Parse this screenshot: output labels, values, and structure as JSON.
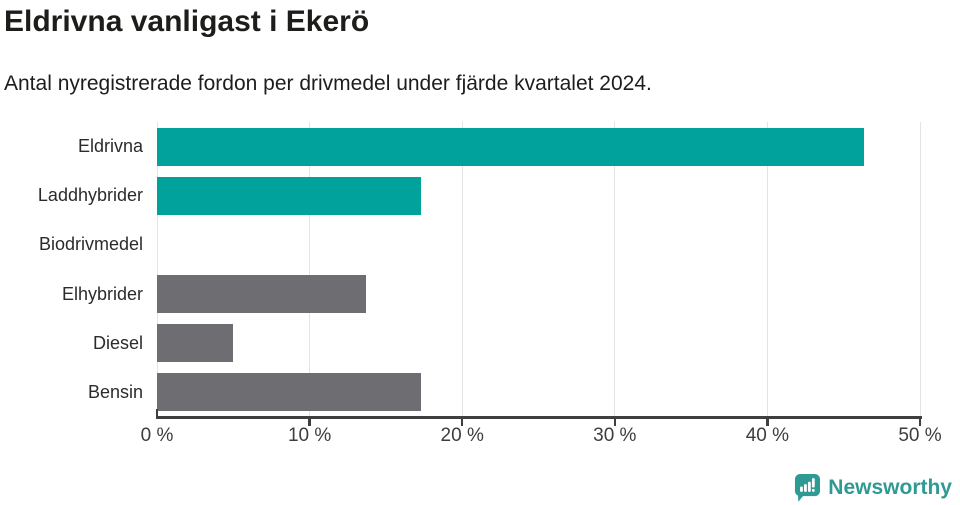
{
  "header": {
    "title": "Eldrivna vanligast i Ekerö",
    "subtitle": "Antal nyregistrerade fordon per drivmedel under fjärde kvartalet 2024."
  },
  "chart_data": {
    "type": "bar",
    "orientation": "horizontal",
    "title": "Eldrivna vanligast i Ekerö",
    "subtitle": "Antal nyregistrerade fordon per drivmedel under fjärde kvartalet 2024.",
    "categories": [
      "Eldrivna",
      "Laddhybrider",
      "Biodrivmedel",
      "Elhybrider",
      "Diesel",
      "Bensin"
    ],
    "values": [
      46.3,
      17.3,
      0,
      13.7,
      5.0,
      17.3
    ],
    "unit": "%",
    "bar_colors": [
      "#00a29b",
      "#00a29b",
      "#6e6e72",
      "#6e6e72",
      "#6e6e72",
      "#6e6e72"
    ],
    "xlabel": "",
    "ylabel": "",
    "xlim": [
      0,
      50
    ],
    "x_ticks": [
      0,
      10,
      20,
      30,
      40,
      50
    ],
    "x_tick_labels": [
      "0 %",
      "10 %",
      "20 %",
      "30 %",
      "40 %",
      "50 %"
    ],
    "grid": "vertical-gridlines-on",
    "legend": "none"
  },
  "colors": {
    "accent_teal": "#00a29b",
    "neutral_gray": "#6e6e72",
    "axis": "#3f3f3f",
    "gridline": "#e4e4e4",
    "text": "#1d1d1b",
    "brand_teal": "#2f9a93"
  },
  "footer": {
    "brand": "Newsworthy",
    "logo_icon": "newsworthy-chart-bubble-icon"
  }
}
